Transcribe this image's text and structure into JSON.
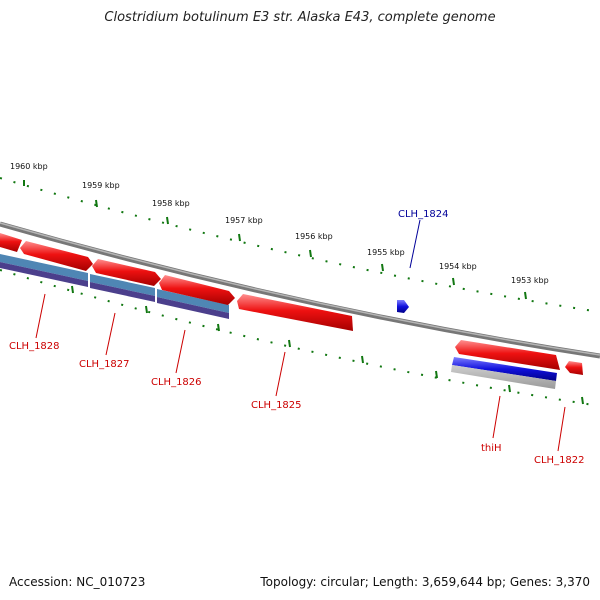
{
  "title": "Clostridium botulinum E3 str. Alaska E43, complete genome",
  "footer": {
    "accession": "Accession: NC_010723",
    "topology": "Topology: circular; Length: 3,659,644 bp; Genes: 3,370"
  },
  "colors": {
    "forward_gene": "#ee1111",
    "reverse_gene": "#1111dd",
    "backbone": "#888888",
    "ticks": "#117711",
    "label_red": "#cc0000",
    "label_blue": "#000099",
    "cds_blue": "#4f86b4",
    "cds_purple": "#4b3f8c",
    "cds_gray": "#b9b9b9"
  },
  "scale_labels": [
    "1960 kbp",
    "1959 kbp",
    "1958 kbp",
    "1957 kbp",
    "1956 kbp",
    "1955 kbp",
    "1954 kbp",
    "1953 kbp"
  ],
  "gene_labels": [
    {
      "text": "CLH_1828",
      "color": "red"
    },
    {
      "text": "CLH_1827",
      "color": "red"
    },
    {
      "text": "CLH_1826",
      "color": "red"
    },
    {
      "text": "CLH_1825",
      "color": "red"
    },
    {
      "text": "CLH_1824",
      "color": "blue"
    },
    {
      "text": "thiH",
      "color": "red"
    },
    {
      "text": "CLH_1822",
      "color": "red"
    }
  ]
}
